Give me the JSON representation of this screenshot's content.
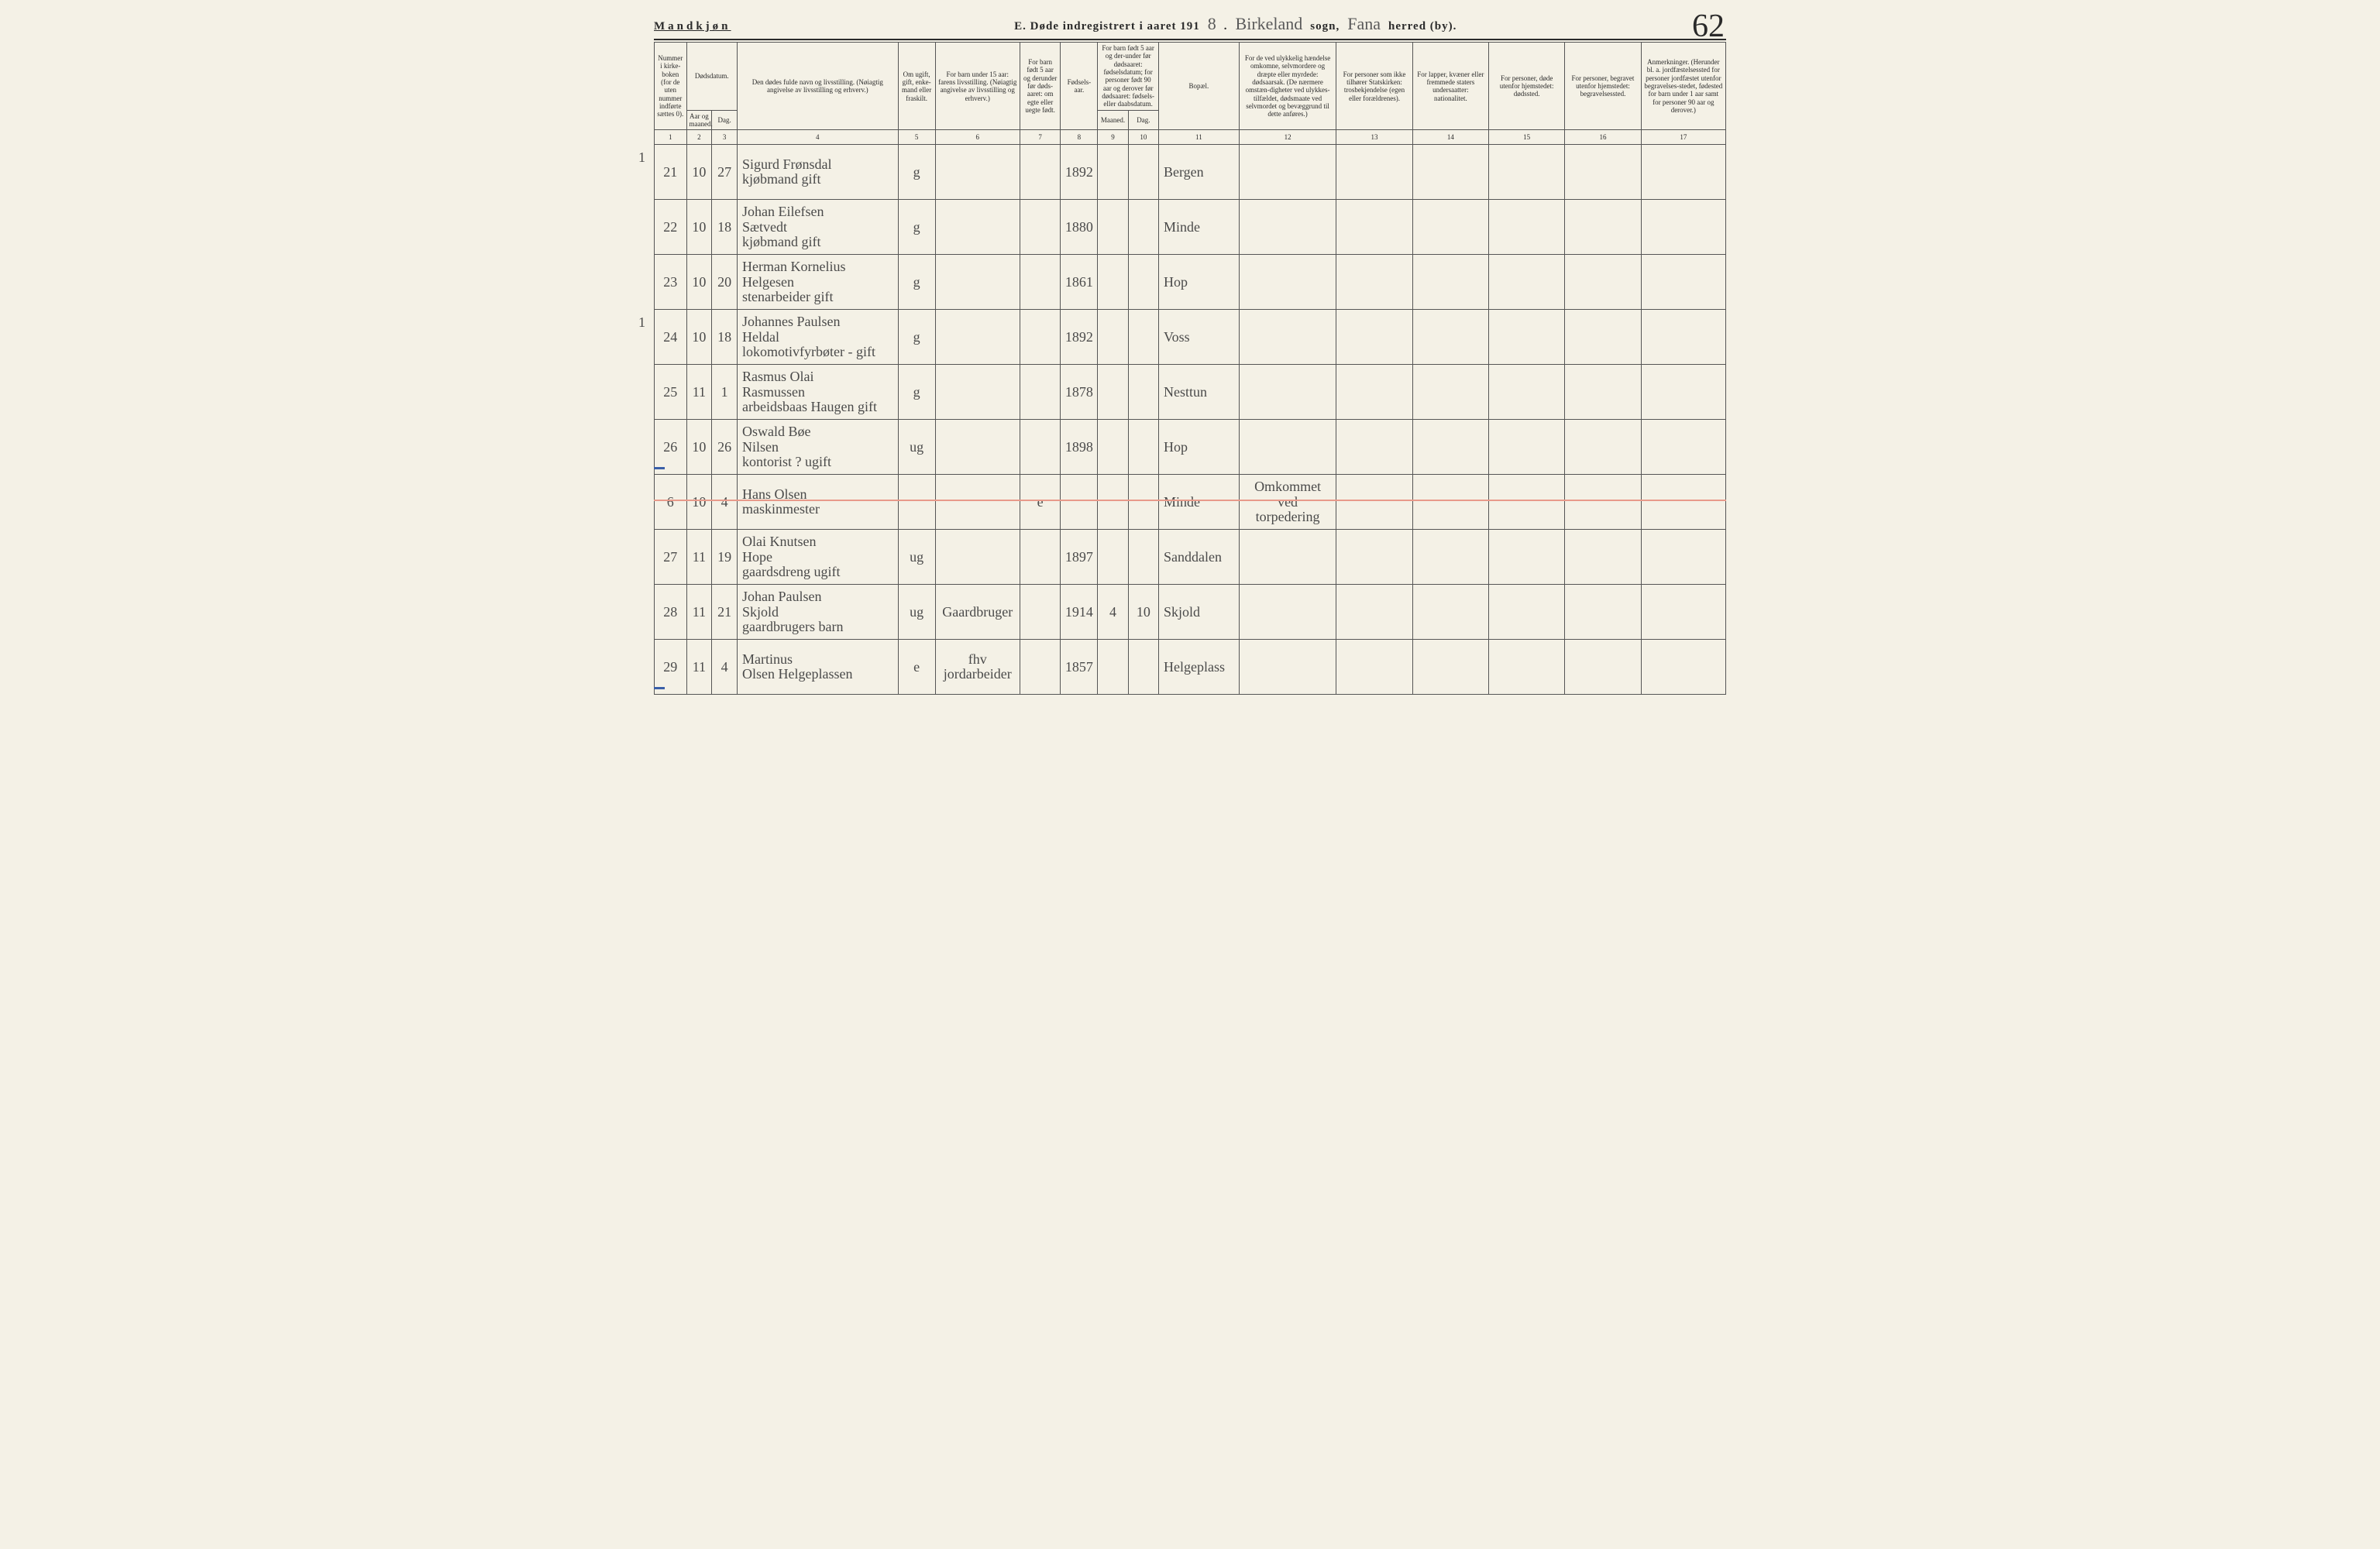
{
  "header": {
    "gender": "Mandkjøn",
    "title_prefix": "E.  Døde indregistrert i aaret 191",
    "year_suffix": "8",
    "dot": ".",
    "sogn_hand": "Birkeland",
    "sogn_label": "sogn,",
    "herred_hand": "Fana",
    "herred_label": "herred (by).",
    "page_number": "62"
  },
  "columns": [
    {
      "w": 38,
      "label": "Nummer i kirke-boken (for de uten nummer indførte sættes 0).",
      "num": "1"
    },
    {
      "w": 30,
      "label": "Aar og maaned.",
      "group": "Dødsdatum.",
      "num": "2"
    },
    {
      "w": 30,
      "label": "Dag.",
      "num": "3"
    },
    {
      "w": 190,
      "label": "Den dødes fulde navn og livsstilling.\n(Nøiagtig angivelse av livsstilling og erhverv.)",
      "num": "4"
    },
    {
      "w": 44,
      "label": "Om ugift, gift, enke-mand eller fraskilt.",
      "num": "5"
    },
    {
      "w": 100,
      "label": "For barn under 15 aar: farens livsstilling.\n(Nøiagtig angivelse av livsstilling og erhverv.)",
      "num": "6"
    },
    {
      "w": 48,
      "label": "For barn født 5 aar og derunder før døds-aaret: om egte eller uegte født.",
      "num": "7"
    },
    {
      "w": 44,
      "label": "Fødsels-aar.",
      "num": "8"
    },
    {
      "w": 36,
      "label": "Maaned.",
      "group": "For barn født 5 aar og der-under før dødsaaret: fødselsdatum; for personer født 90 aar og derover før dødsaaret: fødsels- eller daabsdatum.",
      "num": "9"
    },
    {
      "w": 36,
      "label": "Dag.",
      "num": "10"
    },
    {
      "w": 95,
      "label": "Bopæl.",
      "num": "11"
    },
    {
      "w": 115,
      "label": "For de ved ulykkelig hændelse omkomne, selvmordere og dræpte eller myrdede: dødsaarsak.\n(De nærmere omstæn-digheter ved ulykkes-tilfældet, dødsmaate ved selvmordet og bevæggrund til dette anføres.)",
      "num": "12"
    },
    {
      "w": 90,
      "label": "For personer som ikke tilhører Statskirken: trosbekjendelse (egen eller forældrenes).",
      "num": "13"
    },
    {
      "w": 90,
      "label": "For lapper, kvæner eller fremmede staters undersaatter: nationalitet.",
      "num": "14"
    },
    {
      "w": 90,
      "label": "For personer, døde utenfor hjemstedet: dødssted.",
      "num": "15"
    },
    {
      "w": 90,
      "label": "For personer, begravet utenfor hjemstedet: begravelsessted.",
      "num": "16"
    },
    {
      "w": 100,
      "label": "Anmerkninger.\n(Herunder bl. a. jordfæstelsessted for personer jordfæstet utenfor begravelses-stedet, fødested for barn under 1 aar samt for personer 90 aar og derover.)",
      "num": "17"
    }
  ],
  "rows": [
    {
      "leftmark": "1",
      "n": "21",
      "m": "10",
      "d": "27",
      "name": "Sigurd Frønsdal\nkjøbmand        gift",
      "status": "g",
      "faren": "",
      "egte": "",
      "faar": "1892",
      "fm": "",
      "fd": "",
      "bopael": "Bergen",
      "d12": "",
      "d13": "",
      "d14": "",
      "d15": "",
      "d16": "",
      "d17": ""
    },
    {
      "n": "22",
      "m": "10",
      "d": "18",
      "name": "Johan Eilefsen\n     Sætvedt\nkjøbmand        gift",
      "status": "g",
      "faren": "",
      "egte": "",
      "faar": "1880",
      "fm": "",
      "fd": "",
      "bopael": "Minde",
      "d12": "",
      "d13": "",
      "d14": "",
      "d15": "",
      "d16": "",
      "d17": ""
    },
    {
      "n": "23",
      "m": "10",
      "d": "20",
      "name": "Herman Kornelius\n        Helgesen\nstenarbeider    gift",
      "status": "g",
      "faren": "",
      "egte": "",
      "faar": "1861",
      "fm": "",
      "fd": "",
      "bopael": "Hop",
      "d12": "",
      "d13": "",
      "d14": "",
      "d15": "",
      "d16": "",
      "d17": ""
    },
    {
      "leftmark": "1",
      "n": "24",
      "m": "10",
      "d": "18",
      "name": "Johannes Paulsen\n      Heldal\nlokomotivfyrbøter - gift",
      "status": "g",
      "faren": "",
      "egte": "",
      "faar": "1892",
      "fm": "",
      "fd": "",
      "bopael": "Voss",
      "d12": "",
      "d13": "",
      "d14": "",
      "d15": "",
      "d16": "",
      "d17": ""
    },
    {
      "n": "25",
      "m": "11",
      "d": "1",
      "name": "Rasmus Olai\n    Rasmussen\narbeidsbaas Haugen  gift",
      "status": "g",
      "faren": "",
      "egte": "",
      "faar": "1878",
      "fm": "",
      "fd": "",
      "bopael": "Nesttun",
      "d12": "",
      "d13": "",
      "d14": "",
      "d15": "",
      "d16": "",
      "d17": ""
    },
    {
      "bluedash": true,
      "n": "26",
      "m": "10",
      "d": "26",
      "name": "Oswald Bøe\n    Nilsen\nkontorist ?    ugift",
      "status": "ug",
      "faren": "",
      "egte": "",
      "faar": "1898",
      "fm": "",
      "fd": "",
      "bopael": "Hop",
      "d12": "",
      "d13": "",
      "d14": "",
      "d15": "",
      "d16": "",
      "d17": ""
    },
    {
      "highlight": true,
      "n": "6",
      "m": "10",
      "d": "4",
      "name": "Hans Olsen\nmaskinmester",
      "status": "",
      "faren": "",
      "egte": "e",
      "faar": "",
      "fm": "",
      "fd": "",
      "bopael": "Minde",
      "d12": "Omkommet\nved\ntorpedering",
      "d13": "",
      "d14": "",
      "d15": "",
      "d16": "",
      "d17": ""
    },
    {
      "n": "27",
      "m": "11",
      "d": "19",
      "name": "Olai Knutsen\n      Hope\ngaardsdreng   ugift",
      "status": "ug",
      "faren": "",
      "egte": "",
      "faar": "1897",
      "fm": "",
      "fd": "",
      "bopael": "Sanddalen",
      "d12": "",
      "d13": "",
      "d14": "",
      "d15": "",
      "d16": "",
      "d17": ""
    },
    {
      "n": "28",
      "m": "11",
      "d": "21",
      "name": "Johan Paulsen\n      Skjold\ngaardbrugers   barn",
      "status": "ug",
      "faren": "Gaardbruger",
      "egte": "",
      "faar": "1914",
      "fm": "4",
      "fd": "10",
      "bopael": "Skjold",
      "d12": "",
      "d13": "",
      "d14": "",
      "d15": "",
      "d16": "",
      "d17": ""
    },
    {
      "bluedash": true,
      "n": "29",
      "m": "11",
      "d": "4",
      "name": "Martinus\nOlsen   Helgeplassen",
      "status": "e",
      "faren": "fhv\njordarbeider",
      "egte": "",
      "faar": "1857",
      "fm": "",
      "fd": "",
      "bopael": "Helgeplass",
      "d12": "",
      "d13": "",
      "d14": "",
      "d15": "",
      "d16": "",
      "d17": ""
    }
  ]
}
